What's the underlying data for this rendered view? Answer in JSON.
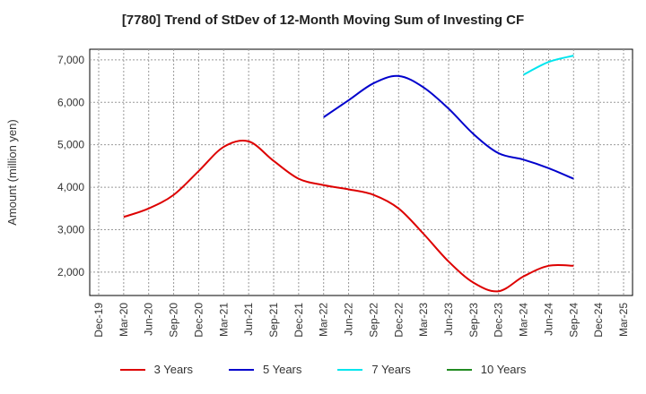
{
  "chart_data": {
    "type": "line",
    "title": "[7780]  Trend of StDev of 12-Month Moving Sum of Investing CF",
    "ylabel": "Amount (million yen)",
    "xlabel": "",
    "ylim": [
      1450,
      7250
    ],
    "yticks": [
      2000,
      3000,
      4000,
      5000,
      6000,
      7000
    ],
    "ytick_labels": [
      "2,000",
      "3,000",
      "4,000",
      "5,000",
      "6,000",
      "7,000"
    ],
    "x_categories": [
      "Dec-19",
      "Mar-20",
      "Jun-20",
      "Sep-20",
      "Dec-20",
      "Mar-21",
      "Jun-21",
      "Sep-21",
      "Dec-21",
      "Mar-22",
      "Jun-22",
      "Sep-22",
      "Dec-22",
      "Mar-23",
      "Jun-23",
      "Sep-23",
      "Dec-23",
      "Mar-24",
      "Jun-24",
      "Sep-24",
      "Dec-24",
      "Mar-25"
    ],
    "grid": true,
    "legend_position": "bottom",
    "series": [
      {
        "name": "3 Years",
        "color": "#dd0000",
        "values": [
          null,
          3300,
          3500,
          3820,
          4380,
          4950,
          5080,
          4620,
          4200,
          4050,
          3950,
          3820,
          3500,
          2900,
          2250,
          1750,
          1550,
          1900,
          2150,
          2150,
          null,
          null
        ]
      },
      {
        "name": "5 Years",
        "color": "#0000cc",
        "values": [
          null,
          null,
          null,
          null,
          null,
          null,
          null,
          null,
          null,
          5650,
          6050,
          6450,
          6620,
          6350,
          5850,
          5250,
          4800,
          4650,
          4450,
          4200,
          null,
          null
        ]
      },
      {
        "name": "7 Years",
        "color": "#00e5ee",
        "values": [
          null,
          null,
          null,
          null,
          null,
          null,
          null,
          null,
          null,
          null,
          null,
          null,
          null,
          null,
          null,
          null,
          null,
          6650,
          6950,
          7100,
          null,
          null
        ]
      },
      {
        "name": "10 Years",
        "color": "#228b22",
        "values": [
          null,
          null,
          null,
          null,
          null,
          null,
          null,
          null,
          null,
          null,
          null,
          null,
          null,
          null,
          null,
          null,
          null,
          null,
          null,
          null,
          null,
          null
        ]
      }
    ]
  }
}
